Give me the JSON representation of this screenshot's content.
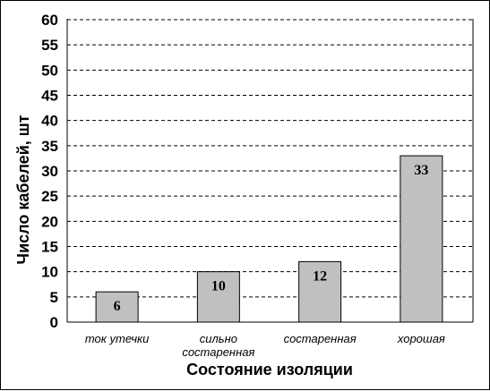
{
  "chart_data": {
    "type": "bar",
    "categories": [
      "ток утечки",
      "сильно состаренная",
      "состаренная",
      "хорошая"
    ],
    "category_lines": [
      [
        "ток утечки"
      ],
      [
        "сильно",
        "состаренная"
      ],
      [
        "состаренная"
      ],
      [
        "хорошая"
      ]
    ],
    "values": [
      6,
      10,
      12,
      33
    ],
    "data_labels": [
      "6",
      "10",
      "12",
      "33"
    ],
    "title": "",
    "xlabel": "Состояние изоляции",
    "ylabel": "Число кабелей, шт",
    "ylim": [
      0,
      60
    ],
    "yticks": [
      0,
      5,
      10,
      15,
      20,
      25,
      30,
      35,
      40,
      45,
      50,
      55,
      60
    ],
    "grid": true,
    "grid_style": "dashed",
    "legend": "none",
    "bar_color": "#c0c0c0",
    "bar_edge_color": "#000000"
  }
}
